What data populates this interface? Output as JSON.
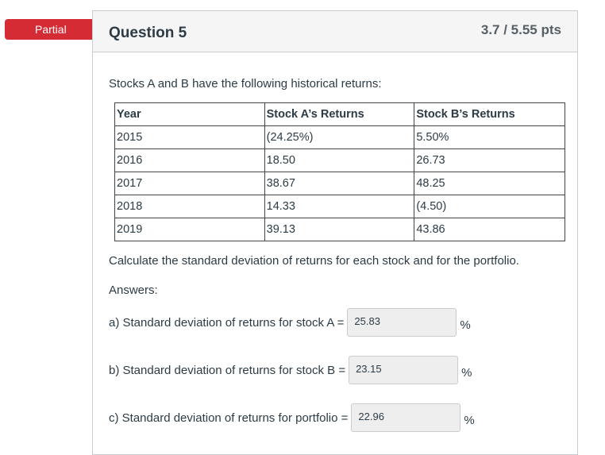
{
  "status_badge": "Partial",
  "question": {
    "title": "Question 5",
    "points": "3.7 / 5.55 pts",
    "intro": "Stocks A and B have the following historical returns:",
    "table": {
      "headers": [
        "Year",
        "Stock A’s Returns",
        "Stock B’s Returns"
      ],
      "rows": [
        [
          "2015",
          "(24.25%)",
          "5.50%"
        ],
        [
          "2016",
          "18.50",
          "26.73"
        ],
        [
          "2017",
          "38.67",
          "48.25"
        ],
        [
          "2018",
          "14.33",
          "(4.50)"
        ],
        [
          "2019",
          "39.13",
          "43.86"
        ]
      ]
    },
    "instruction": "Calculate the standard deviation of returns for each stock and for the portfolio.",
    "answers_label": "Answers:",
    "answers": [
      {
        "label": "a) Standard deviation of returns for stock A =",
        "value": "25.83",
        "unit": "%"
      },
      {
        "label": "b) Standard deviation of returns for stock B =",
        "value": "23.15",
        "unit": "%"
      },
      {
        "label": "c) Standard deviation of returns for portfolio =",
        "value": "22.96",
        "unit": "%"
      }
    ]
  }
}
